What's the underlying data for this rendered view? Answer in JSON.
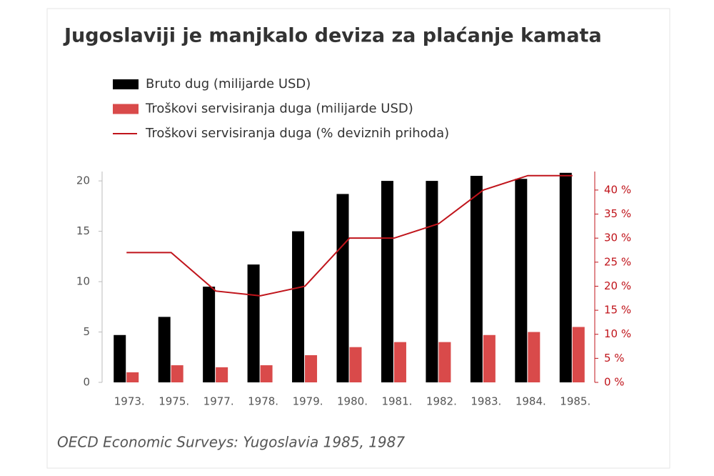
{
  "chart_data": {
    "type": "bar",
    "title": "Jugoslaviji je manjkalo deviza za plaćanje kamata",
    "source": "OECD Economic Surveys: Yugoslavia 1985, 1987",
    "categories": [
      "1973.",
      "1975.",
      "1977.",
      "1978.",
      "1979.",
      "1980.",
      "1981.",
      "1982.",
      "1983.",
      "1984.",
      "1985."
    ],
    "series": [
      {
        "name": "Bruto dug (milijarde USD)",
        "color": "#000000",
        "type": "bar",
        "values": [
          4.7,
          6.5,
          9.5,
          11.7,
          15,
          18.7,
          20,
          20,
          20.5,
          20.2,
          20.8
        ]
      },
      {
        "name": "Troškovi servisiranja duga (milijarde USD)",
        "color": "#d94a4a",
        "type": "bar",
        "values": [
          1.0,
          1.7,
          1.5,
          1.7,
          2.7,
          3.5,
          4.0,
          4.0,
          4.7,
          5.0,
          5.5
        ]
      },
      {
        "name": "Troškovi servisiranja duga (% deviznih prihoda)",
        "color": "#c0141b",
        "type": "line",
        "axis": "y2",
        "values": [
          27,
          27,
          19,
          18,
          20,
          30,
          30,
          33,
          40,
          43,
          43
        ]
      }
    ],
    "ylim": [
      0,
      21
    ],
    "yticks": [
      0,
      5,
      10,
      15,
      20
    ],
    "y2lim": [
      0,
      44
    ],
    "y2ticks": [
      {
        "value": 0,
        "label": "0 %"
      },
      {
        "value": 5,
        "label": "5 %"
      },
      {
        "value": 10,
        "label": "10 %"
      },
      {
        "value": 15,
        "label": "15 %"
      },
      {
        "value": 20,
        "label": "20 %"
      },
      {
        "value": 25,
        "label": "25 %"
      },
      {
        "value": 30,
        "label": "30 %"
      },
      {
        "value": 35,
        "label": "35 %"
      },
      {
        "value": 40,
        "label": "40 %"
      }
    ],
    "legend": "top-left"
  }
}
